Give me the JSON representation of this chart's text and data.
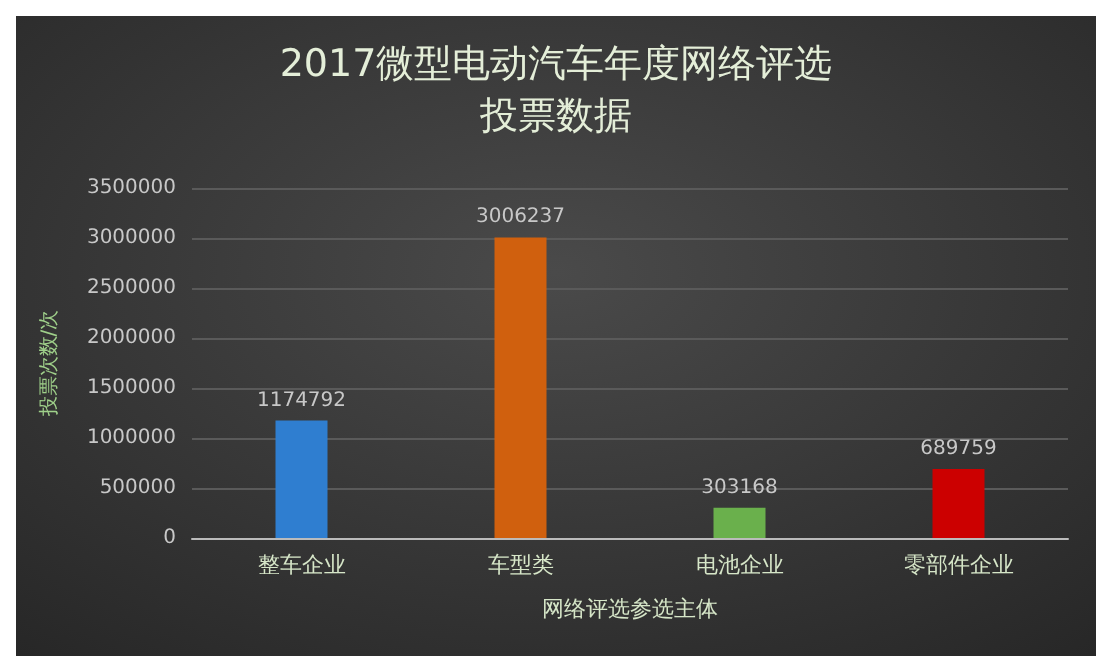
{
  "chart_data": {
    "type": "bar",
    "title": "2017微型电动汽车年度网络评选投票数据",
    "xlabel": "网络评选参选主体",
    "ylabel": "投票次数/次",
    "categories": [
      "整车企业",
      "车型类",
      "电池企业",
      "零部件企业"
    ],
    "values": [
      1174792,
      3006237,
      303168,
      689759
    ],
    "colors": [
      "#2f7ed0",
      "#d0600e",
      "#6ab04c",
      "#cc0000"
    ],
    "data_labels": true,
    "ylim": [
      0,
      3500000
    ],
    "yticks": [
      0,
      500000,
      1000000,
      1500000,
      2000000,
      2500000,
      3000000,
      3500000
    ],
    "grid": "y"
  }
}
